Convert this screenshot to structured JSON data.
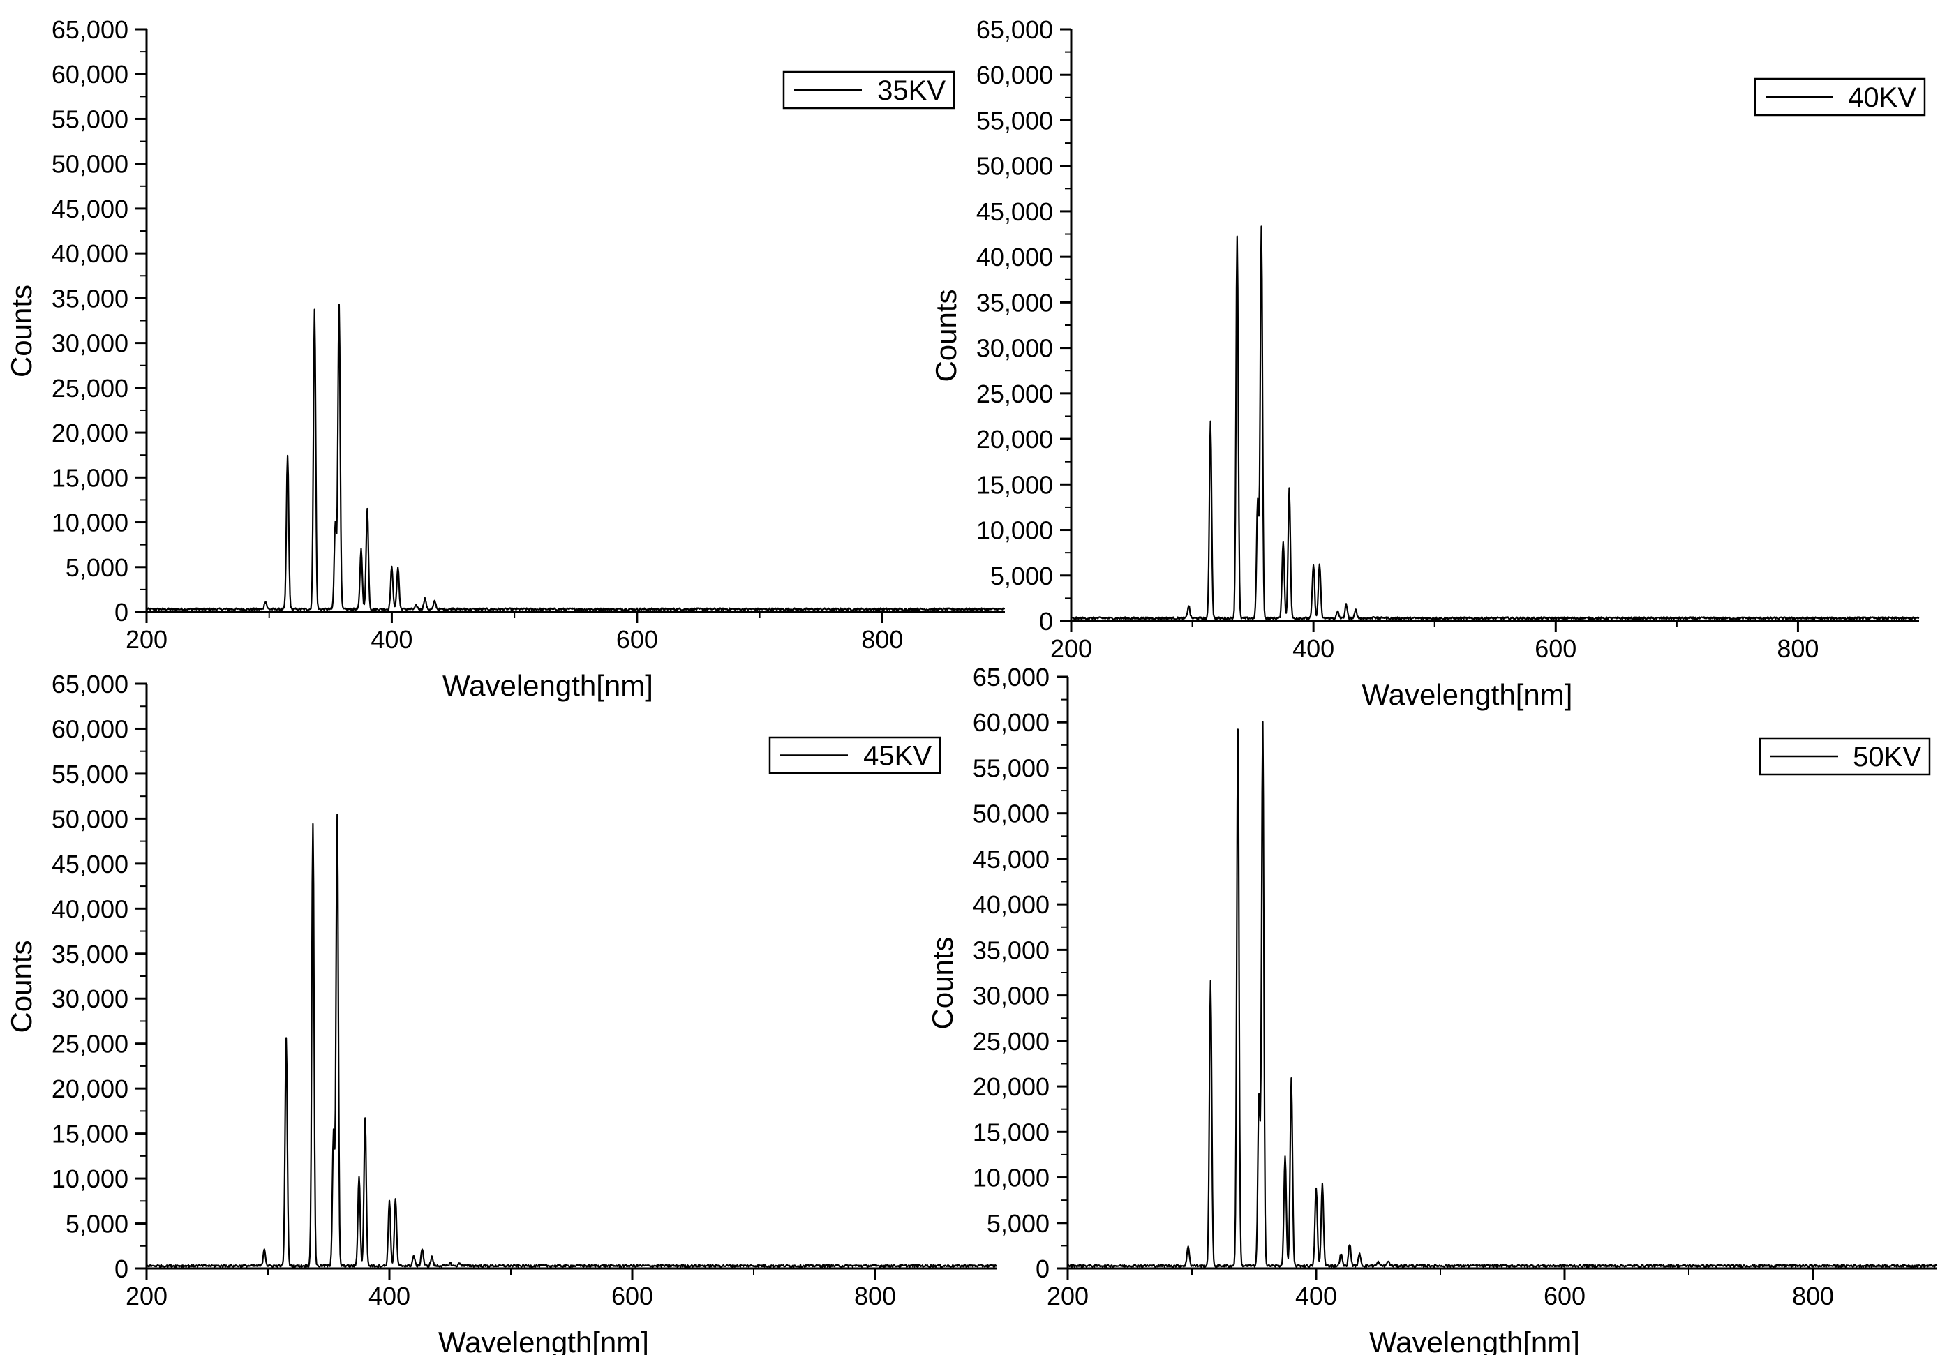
{
  "chart_data": [
    {
      "type": "line",
      "xlabel": "Wavelength[nm]",
      "ylabel": "Counts",
      "xlim": [
        200,
        900
      ],
      "ylim": [
        0,
        65000
      ],
      "x_ticks": [
        200,
        400,
        600,
        800
      ],
      "y_ticks": [
        0,
        5000,
        10000,
        15000,
        20000,
        25000,
        30000,
        35000,
        40000,
        45000,
        50000,
        55000,
        60000,
        65000
      ],
      "legend": "top-right",
      "series": [
        {
          "name": "35KV",
          "baseline": 300,
          "peaks": [
            [
              297,
              1200
            ],
            [
              315,
              17500
            ],
            [
              337,
              33800
            ],
            [
              354,
              10000
            ],
            [
              357,
              34300
            ],
            [
              375,
              7000
            ],
            [
              380,
              11500
            ],
            [
              400,
              5000
            ],
            [
              405,
              5000
            ],
            [
              420,
              700
            ],
            [
              427,
              1500
            ],
            [
              435,
              1200
            ],
            [
              450,
              400
            ],
            [
              458,
              300
            ]
          ]
        }
      ]
    },
    {
      "type": "line",
      "xlabel": "Wavelength[nm]",
      "ylabel": "Counts",
      "xlim": [
        200,
        900
      ],
      "ylim": [
        0,
        65000
      ],
      "x_ticks": [
        200,
        400,
        600,
        800
      ],
      "y_ticks": [
        0,
        5000,
        10000,
        15000,
        20000,
        25000,
        30000,
        35000,
        40000,
        45000,
        50000,
        55000,
        60000,
        65000
      ],
      "legend": "top-right",
      "series": [
        {
          "name": "40KV",
          "baseline": 300,
          "peaks": [
            [
              297,
              1700
            ],
            [
              315,
              22000
            ],
            [
              337,
              42300
            ],
            [
              354,
              13300
            ],
            [
              357,
              43400
            ],
            [
              375,
              8800
            ],
            [
              380,
              14500
            ],
            [
              400,
              6200
            ],
            [
              405,
              6300
            ],
            [
              420,
              1000
            ],
            [
              427,
              1800
            ],
            [
              435,
              1200
            ],
            [
              450,
              500
            ],
            [
              458,
              400
            ]
          ]
        }
      ]
    },
    {
      "type": "line",
      "xlabel": "Wavelength[nm]",
      "ylabel": "Counts",
      "xlim": [
        200,
        900
      ],
      "ylim": [
        0,
        65000
      ],
      "x_ticks": [
        200,
        400,
        600,
        800
      ],
      "y_ticks": [
        0,
        5000,
        10000,
        15000,
        20000,
        25000,
        30000,
        35000,
        40000,
        45000,
        50000,
        55000,
        60000,
        65000
      ],
      "legend": "top-right",
      "series": [
        {
          "name": "45KV",
          "baseline": 300,
          "peaks": [
            [
              297,
              2200
            ],
            [
              315,
              25700
            ],
            [
              337,
              49500
            ],
            [
              354,
              15300
            ],
            [
              357,
              50300
            ],
            [
              375,
              10300
            ],
            [
              380,
              16800
            ],
            [
              400,
              7500
            ],
            [
              405,
              7700
            ],
            [
              420,
              1400
            ],
            [
              427,
              2200
            ],
            [
              435,
              1300
            ],
            [
              450,
              600
            ],
            [
              458,
              600
            ]
          ]
        }
      ]
    },
    {
      "type": "line",
      "xlabel": "Wavelength[nm]",
      "ylabel": "Counts",
      "xlim": [
        200,
        900
      ],
      "ylim": [
        0,
        65000
      ],
      "x_ticks": [
        200,
        400,
        600,
        800
      ],
      "y_ticks": [
        0,
        5000,
        10000,
        15000,
        20000,
        25000,
        30000,
        35000,
        40000,
        45000,
        50000,
        55000,
        60000,
        65000
      ],
      "legend": "top-right",
      "series": [
        {
          "name": "50KV",
          "baseline": 300,
          "peaks": [
            [
              297,
              2500
            ],
            [
              315,
              31700
            ],
            [
              337,
              59200
            ],
            [
              354,
              18800
            ],
            [
              357,
              60000
            ],
            [
              375,
              12300
            ],
            [
              380,
              20800
            ],
            [
              400,
              8900
            ],
            [
              405,
              9300
            ],
            [
              420,
              1600
            ],
            [
              427,
              2700
            ],
            [
              435,
              1600
            ],
            [
              450,
              700
            ],
            [
              458,
              800
            ]
          ]
        }
      ]
    }
  ]
}
